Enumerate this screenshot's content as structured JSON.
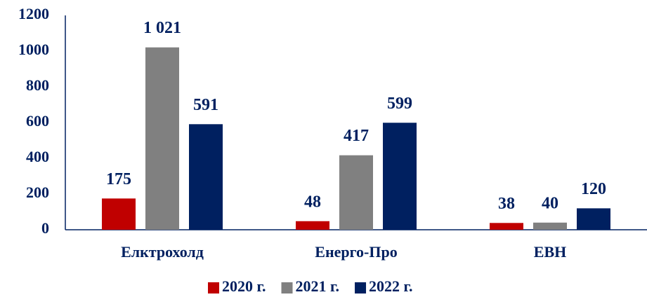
{
  "chart_data": {
    "type": "bar",
    "categories": [
      "Елктрохолд",
      "Енерго-Про",
      "ЕВН"
    ],
    "series": [
      {
        "name": "2020 г.",
        "color": "#c00000",
        "values": [
          175,
          48,
          38
        ],
        "value_labels": [
          "175",
          "48",
          "38"
        ]
      },
      {
        "name": "2021 г.",
        "color": "#808080",
        "values": [
          1021,
          417,
          40
        ],
        "value_labels": [
          "1 021",
          "417",
          "40"
        ]
      },
      {
        "name": "2022 г.",
        "color": "#002060",
        "values": [
          591,
          599,
          120
        ],
        "value_labels": [
          "591",
          "599",
          "120"
        ]
      }
    ],
    "ylim": [
      0,
      1200
    ],
    "yticks": [
      0,
      200,
      400,
      600,
      800,
      1000,
      1200
    ],
    "grid": false,
    "legend": "bottom"
  }
}
